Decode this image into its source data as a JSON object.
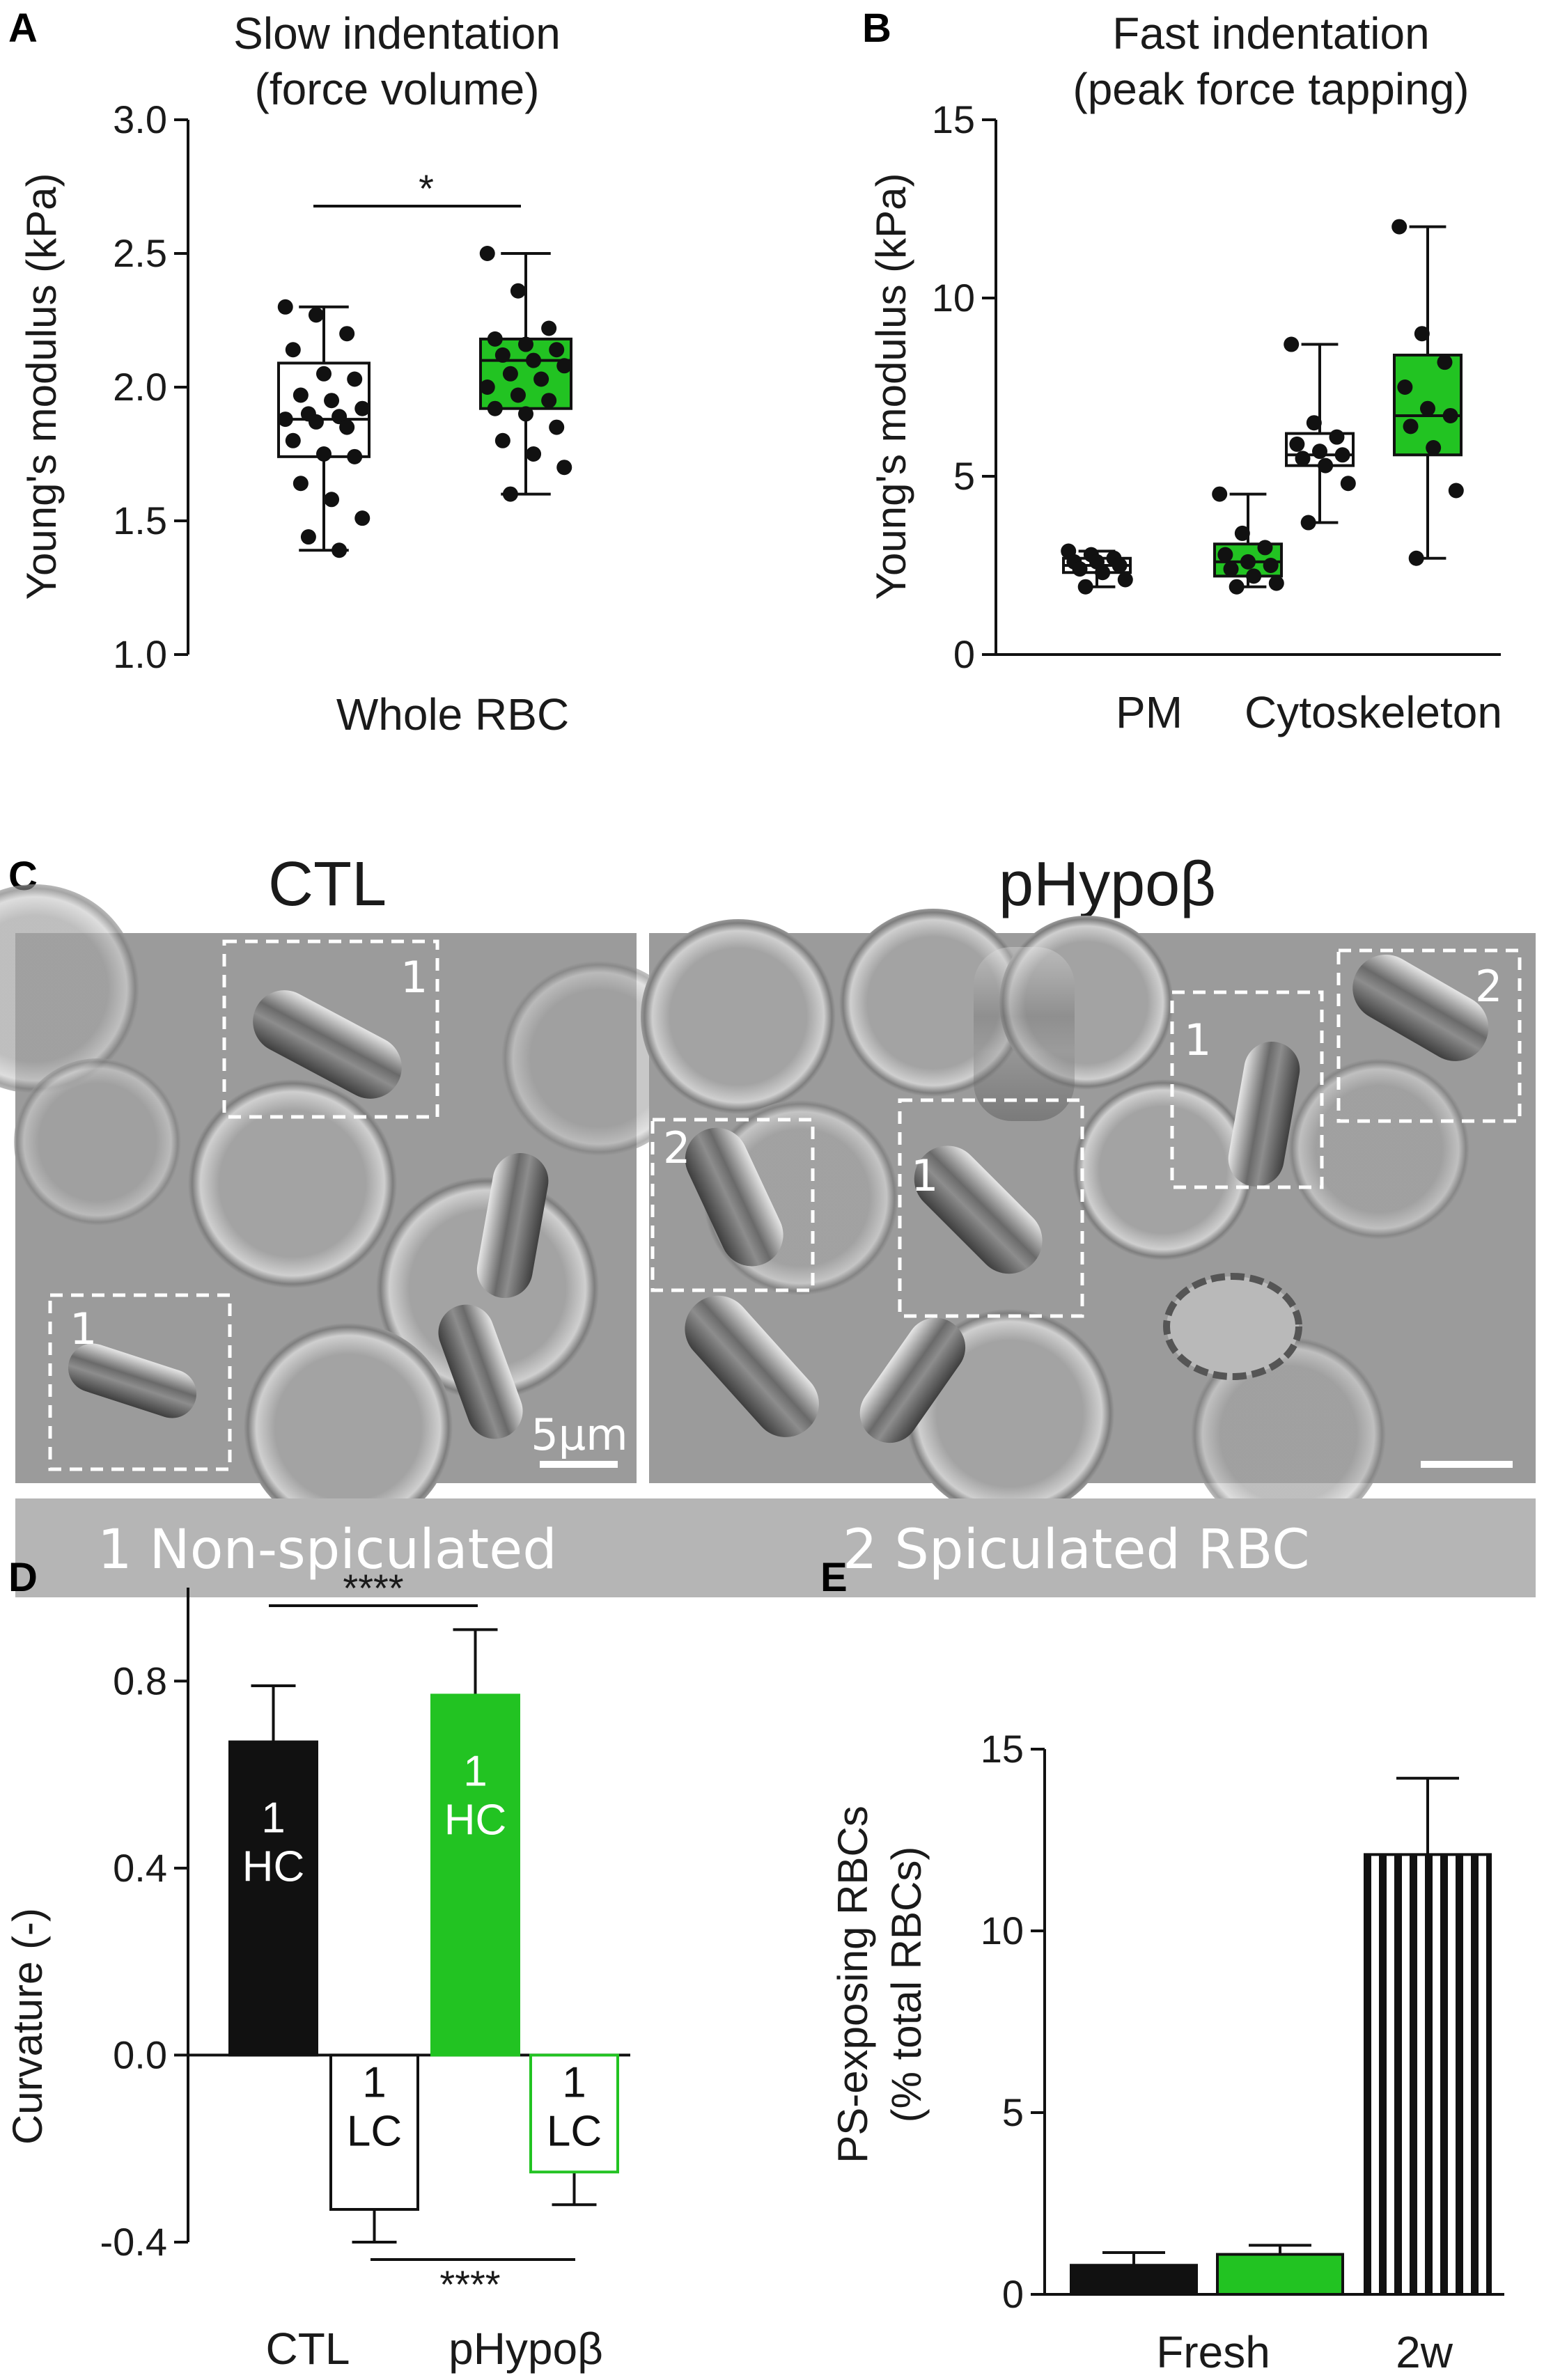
{
  "panel_labels": {
    "a": "A",
    "b": "B",
    "c": "C",
    "d": "D",
    "e": "E"
  },
  "colors": {
    "green": "#22c322",
    "black": "#111111",
    "white": "#ffffff",
    "banner": "#b5b5b5",
    "micrograph": "#9a9a9a"
  },
  "chart_data": [
    {
      "id": "A",
      "type": "box",
      "title": [
        "Slow indentation",
        "(force volume)"
      ],
      "ylabel": "Young's modulus (kPa)",
      "xlabel": "Whole RBC",
      "ylim": [
        1.0,
        3.0
      ],
      "yticks": [
        "1.0",
        "1.5",
        "2.0",
        "2.5",
        "3.0"
      ],
      "significance": "*",
      "series": [
        {
          "color": "#ffffff",
          "box": {
            "min": 1.39,
            "q1": 1.74,
            "median": 1.88,
            "q3": 2.09,
            "max": 2.3
          },
          "points": [
            2.3,
            2.27,
            2.2,
            2.14,
            2.05,
            2.03,
            1.97,
            1.95,
            1.92,
            1.9,
            1.89,
            1.88,
            1.87,
            1.85,
            1.8,
            1.75,
            1.74,
            1.64,
            1.58,
            1.51,
            1.44,
            1.39
          ]
        },
        {
          "color": "#22c322",
          "box": {
            "min": 1.6,
            "q1": 1.92,
            "median": 2.1,
            "q3": 2.18,
            "max": 2.5
          },
          "points": [
            2.5,
            2.36,
            2.22,
            2.18,
            2.16,
            2.14,
            2.12,
            2.1,
            2.08,
            2.05,
            2.03,
            2.0,
            1.97,
            1.95,
            1.92,
            1.9,
            1.85,
            1.8,
            1.75,
            1.7,
            1.6
          ]
        }
      ]
    },
    {
      "id": "B",
      "type": "box",
      "title": [
        "Fast indentation",
        "(peak force tapping)"
      ],
      "ylabel": "Young's modulus (kPa)",
      "categories": [
        "PM",
        "Cytoskeleton"
      ],
      "ylim": [
        0,
        15
      ],
      "yticks": [
        "0",
        "5",
        "10",
        "15"
      ],
      "series": [
        {
          "color": "#ffffff",
          "box": {
            "min": 1.9,
            "q1": 2.3,
            "median": 2.5,
            "q3": 2.7,
            "max": 2.9
          },
          "points": [
            2.9,
            2.8,
            2.7,
            2.6,
            2.6,
            2.5,
            2.4,
            2.3,
            2.1,
            1.9
          ]
        },
        {
          "color": "#22c322",
          "box": {
            "min": 1.9,
            "q1": 2.2,
            "median": 2.6,
            "q3": 3.1,
            "max": 4.5
          },
          "points": [
            4.5,
            3.4,
            3.0,
            2.8,
            2.6,
            2.5,
            2.4,
            2.2,
            2.0,
            1.9
          ]
        },
        {
          "color": "#ffffff",
          "box": {
            "min": 3.7,
            "q1": 5.3,
            "median": 5.6,
            "q3": 6.2,
            "max": 8.7
          },
          "points": [
            8.7,
            6.5,
            6.1,
            5.9,
            5.7,
            5.6,
            5.5,
            5.3,
            4.8,
            3.7
          ]
        },
        {
          "color": "#22c322",
          "box": {
            "min": 2.7,
            "q1": 5.6,
            "median": 6.7,
            "q3": 8.4,
            "max": 12.0
          },
          "points": [
            12.0,
            9.0,
            8.2,
            7.5,
            6.9,
            6.7,
            6.4,
            5.8,
            4.6,
            2.7
          ]
        }
      ]
    },
    {
      "id": "D",
      "type": "bar",
      "ylabel": "Curvature (-)",
      "categories": [
        "CTL",
        "pHypoβ"
      ],
      "ylim": [
        -0.4,
        1.0
      ],
      "yticks": [
        "-0.4",
        "0.0",
        "0.4",
        "0.8"
      ],
      "significance": [
        "****",
        "****"
      ],
      "bars": [
        {
          "value": 0.67,
          "error": 0.12,
          "fill": "#111111",
          "stroke": "#111111",
          "label": [
            "1",
            "HC"
          ],
          "label_color": "#ffffff"
        },
        {
          "value": -0.33,
          "error": 0.07,
          "fill": "#ffffff",
          "stroke": "#111111",
          "label": [
            "1",
            "LC"
          ],
          "label_color": "#111111"
        },
        {
          "value": 0.77,
          "error": 0.14,
          "fill": "#22c322",
          "stroke": "#22c322",
          "label": [
            "1",
            "HC"
          ],
          "label_color": "#ffffff"
        },
        {
          "value": -0.25,
          "error": 0.07,
          "fill": "#ffffff",
          "stroke": "#22c322",
          "label": [
            "1",
            "LC"
          ],
          "label_color": "#111111"
        }
      ]
    },
    {
      "id": "E",
      "type": "bar",
      "ylabel": [
        "PS-exposing RBCs",
        "(% total RBCs)"
      ],
      "categories": [
        "Fresh",
        "2w"
      ],
      "ylim": [
        0,
        15
      ],
      "yticks": [
        "0",
        "5",
        "10",
        "15"
      ],
      "bars": [
        {
          "value": 0.8,
          "error": 0.35,
          "fill": "#111111"
        },
        {
          "value": 1.1,
          "error": 0.25,
          "fill": "#22c322"
        },
        {
          "value": 12.1,
          "error": 2.1,
          "fill": "striped"
        }
      ]
    }
  ],
  "micrographs": {
    "ctl_title": "CTL",
    "phypo_title": "pHypoβ",
    "scale_bar_label": "5µm",
    "box_labels": {
      "ctl_top": "1",
      "ctl_bottom": "1",
      "phypo_left": "2",
      "phypo_center": "1",
      "phypo_mid": "1",
      "phypo_right": "2"
    },
    "banner_left": "1  Non-spiculated",
    "banner_right": "2  Spiculated RBC"
  }
}
